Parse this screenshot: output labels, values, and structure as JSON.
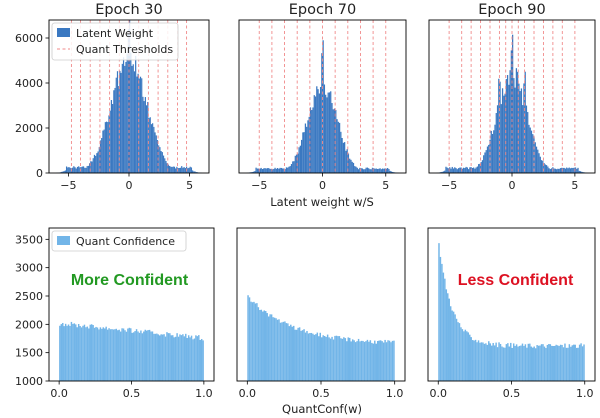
{
  "figure": {
    "top_xlabel": "Latent weight w/S",
    "bottom_xlabel": "QuantConf(w)"
  },
  "chart_data": [
    {
      "type": "bar",
      "title": "Epoch 30",
      "xlim": [
        -6.6,
        6.6
      ],
      "ylim": [
        0,
        6800
      ],
      "xticks": [
        -5,
        0,
        5
      ],
      "xtick_labels": [
        "−5",
        "0",
        "5"
      ],
      "yticks": [
        0,
        2000,
        4000,
        6000
      ],
      "ytick_labels": [
        "0",
        "2000",
        "4000",
        "6000"
      ],
      "legend": {
        "position": "upper-left",
        "entries": [
          "Latent Weight",
          "Quant Thresholds"
        ]
      },
      "thresholds": [
        -4.75,
        -4,
        -3.2,
        -2.4,
        -1.6,
        -0.8,
        0,
        0.8,
        1.6,
        2.4,
        3.2,
        4,
        4.75
      ],
      "histogram": {
        "bin_min": -6,
        "bin_max": 6,
        "bins": 120,
        "spikes": [
          0
        ]
      },
      "series": [
        {
          "name": "Latent Weight",
          "distribution": "gaussian",
          "peak": 5100,
          "sigma": 1.45,
          "floor": 260,
          "tail_edge": 5.2
        }
      ]
    },
    {
      "type": "bar",
      "title": "Epoch 70",
      "xlim": [
        -6.6,
        6.6
      ],
      "ylim": [
        0,
        6800
      ],
      "xticks": [
        -5,
        0,
        5
      ],
      "xtick_labels": [
        "−5",
        "0",
        "5"
      ],
      "thresholds": [
        -5,
        -4,
        -3,
        -2,
        -1,
        0,
        1,
        2,
        3,
        4,
        5
      ],
      "histogram": {
        "bin_min": -6,
        "bin_max": 6,
        "bins": 120,
        "spikes": [
          0
        ]
      },
      "series": [
        {
          "name": "Latent Weight",
          "distribution": "gaussian",
          "peak": 4000,
          "sigma": 1.15,
          "floor": 200,
          "tail_edge": 5.3
        }
      ]
    },
    {
      "type": "bar",
      "title": "Epoch 90",
      "xlim": [
        -6.6,
        6.6
      ],
      "ylim": [
        0,
        6800
      ],
      "xticks": [
        -5,
        0,
        5
      ],
      "xtick_labels": [
        "−5",
        "0",
        "5"
      ],
      "thresholds": [
        -5,
        -4,
        -3.25,
        -2.5,
        -1.75,
        -1,
        -0.5,
        0,
        0.5,
        1,
        1.75,
        2.5,
        3.25,
        4,
        5
      ],
      "histogram": {
        "bin_min": -6,
        "bin_max": 6,
        "bins": 120,
        "spikes": [
          -1,
          0,
          1
        ]
      },
      "series": [
        {
          "name": "Latent Weight",
          "distribution": "gaussian",
          "peak": 4400,
          "sigma": 1.2,
          "floor": 220,
          "tail_edge": 5.3
        }
      ]
    },
    {
      "type": "bar",
      "xlim": [
        -0.07,
        1.07
      ],
      "ylim": [
        1000,
        3700
      ],
      "xticks": [
        0,
        0.5,
        1
      ],
      "xtick_labels": [
        "0.0",
        "0.5",
        "1.0"
      ],
      "yticks": [
        1000,
        1500,
        2000,
        2500,
        3000,
        3500
      ],
      "ytick_labels": [
        "1000",
        "1500",
        "2000",
        "2500",
        "3000",
        "3500"
      ],
      "legend": {
        "position": "upper-left",
        "entries": [
          "Quant Confidence"
        ]
      },
      "annotation": {
        "text": "More Confident",
        "color": "#229922"
      },
      "histogram": {
        "bin_min": 0,
        "bin_max": 1,
        "bins": 100
      },
      "series": [
        {
          "name": "Quant Confidence",
          "distribution": "linear",
          "start": 2020,
          "end": 1760,
          "noise": 45
        }
      ]
    },
    {
      "type": "bar",
      "xlim": [
        -0.07,
        1.07
      ],
      "ylim": [
        1000,
        3700
      ],
      "xticks": [
        0,
        0.5,
        1
      ],
      "xtick_labels": [
        "0.0",
        "0.5",
        "1.0"
      ],
      "histogram": {
        "bin_min": 0,
        "bin_max": 1,
        "bins": 100
      },
      "series": [
        {
          "name": "Quant Confidence",
          "distribution": "exp-decay",
          "base": 1650,
          "amp": 850,
          "decay": 0.3,
          "noise": 40
        }
      ]
    },
    {
      "type": "bar",
      "xlim": [
        -0.07,
        1.07
      ],
      "ylim": [
        1000,
        3700
      ],
      "xticks": [
        0,
        0.5,
        1
      ],
      "xtick_labels": [
        "0.0",
        "0.5",
        "1.0"
      ],
      "annotation": {
        "text": "Less Confident",
        "color": "#dd1122"
      },
      "histogram": {
        "bin_min": 0,
        "bin_max": 1,
        "bins": 100
      },
      "series": [
        {
          "name": "Quant Confidence",
          "distribution": "exp-decay",
          "base": 1620,
          "amp": 1900,
          "decay": 0.09,
          "noise": 45
        }
      ]
    }
  ],
  "colors": {
    "latent_bar": "#3a78c1",
    "threshold": "#f08a8a",
    "confidence_bar": "#72b5e8"
  }
}
